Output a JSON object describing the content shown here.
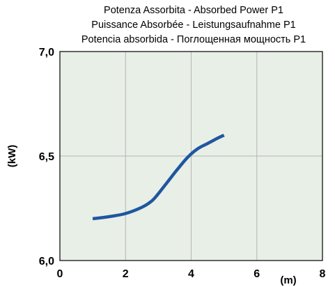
{
  "chart_data": {
    "type": "line",
    "title_lines": [
      "Potenza Assorbita - Absorbed Power P1",
      "Puissance Absorbée - Leistungsaufnahme P1",
      "Potencia absorbida - Поглощенная мощность P1"
    ],
    "xlabel": "(m)",
    "ylabel": "(kW)",
    "xlim": [
      0,
      8
    ],
    "ylim": [
      6.0,
      7.0
    ],
    "x_ticks": [
      {
        "value": 0,
        "label": "0"
      },
      {
        "value": 2,
        "label": "2"
      },
      {
        "value": 4,
        "label": "4"
      },
      {
        "value": 6,
        "label": "6"
      },
      {
        "value": 8,
        "label": "8"
      }
    ],
    "y_ticks": [
      {
        "value": 6.0,
        "label": "6,0"
      },
      {
        "value": 6.5,
        "label": "6,5"
      },
      {
        "value": 7.0,
        "label": "7,0"
      }
    ],
    "grid": true,
    "colors": {
      "plot_background": "#e8efe6",
      "grid": "#b5b5b5",
      "axis": "#000000",
      "line": "#1f56a0"
    },
    "series": [
      {
        "x": [
          1.0,
          1.5,
          2.0,
          2.5,
          2.8,
          3.0,
          3.3,
          3.6,
          3.9,
          4.2,
          4.5,
          4.8,
          5.0
        ],
        "y": [
          6.2,
          6.21,
          6.225,
          6.255,
          6.285,
          6.32,
          6.38,
          6.44,
          6.495,
          6.535,
          6.56,
          6.585,
          6.6
        ]
      }
    ]
  }
}
